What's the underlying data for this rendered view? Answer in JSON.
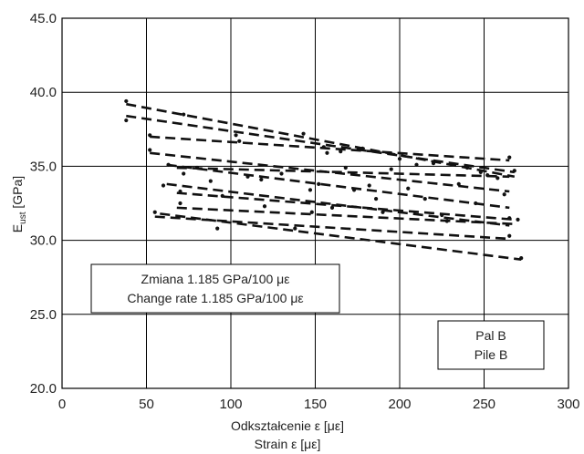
{
  "chart_data": {
    "type": "scatter",
    "xlim": [
      0,
      300
    ],
    "ylim": [
      20,
      45
    ],
    "x_ticks": [
      "0",
      "50",
      "100",
      "150",
      "200",
      "250",
      "300"
    ],
    "y_ticks": [
      "20.0",
      "25.0",
      "30.0",
      "35.0",
      "40.0",
      "45.0"
    ],
    "xlabel": "Odkształcenie ε [με]",
    "xlabel2": "Strain ε [με]",
    "ylabel": "E",
    "ylabel_sub": "ust",
    "ylabel_unit": " [GPa]",
    "grid": true,
    "annotations": {
      "rate_line1": "Zmiana 1.185 GPa/100 με",
      "rate_line2": "Change rate 1.185 GPa/100 με",
      "pile_line1": "Pal B",
      "pile_line2": "Pile B"
    },
    "trend_lines": [
      {
        "x": [
          38,
          268
        ],
        "y": [
          39.2,
          34.3
        ]
      },
      {
        "x": [
          38,
          268
        ],
        "y": [
          38.4,
          34.6
        ]
      },
      {
        "x": [
          52,
          265
        ],
        "y": [
          37.0,
          35.4
        ]
      },
      {
        "x": [
          52,
          265
        ],
        "y": [
          35.9,
          33.3
        ]
      },
      {
        "x": [
          68,
          265
        ],
        "y": [
          34.9,
          34.3
        ]
      },
      {
        "x": [
          62,
          265
        ],
        "y": [
          35.1,
          32.2
        ]
      },
      {
        "x": [
          62,
          265
        ],
        "y": [
          33.8,
          31.0
        ]
      },
      {
        "x": [
          68,
          268
        ],
        "y": [
          33.2,
          31.4
        ]
      },
      {
        "x": [
          68,
          268
        ],
        "y": [
          32.2,
          31.1
        ]
      },
      {
        "x": [
          55,
          265
        ],
        "y": [
          31.6,
          30.1
        ]
      },
      {
        "x": [
          58,
          272
        ],
        "y": [
          31.8,
          28.7
        ]
      }
    ],
    "points": [
      {
        "x": 38,
        "y": 39.4
      },
      {
        "x": 38,
        "y": 38.1
      },
      {
        "x": 52,
        "y": 37.1
      },
      {
        "x": 52,
        "y": 36.1
      },
      {
        "x": 55,
        "y": 31.9
      },
      {
        "x": 60,
        "y": 33.7
      },
      {
        "x": 63,
        "y": 35.1
      },
      {
        "x": 70,
        "y": 33.3
      },
      {
        "x": 70,
        "y": 32.5
      },
      {
        "x": 72,
        "y": 38.5
      },
      {
        "x": 72,
        "y": 34.5
      },
      {
        "x": 80,
        "y": 34.9
      },
      {
        "x": 88,
        "y": 34.0
      },
      {
        "x": 92,
        "y": 30.8
      },
      {
        "x": 95,
        "y": 33.0
      },
      {
        "x": 103,
        "y": 37.1
      },
      {
        "x": 105,
        "y": 36.7
      },
      {
        "x": 110,
        "y": 34.3
      },
      {
        "x": 118,
        "y": 34.1
      },
      {
        "x": 120,
        "y": 32.3
      },
      {
        "x": 130,
        "y": 34.5
      },
      {
        "x": 138,
        "y": 30.8
      },
      {
        "x": 143,
        "y": 37.2
      },
      {
        "x": 147,
        "y": 33.4
      },
      {
        "x": 148,
        "y": 31.9
      },
      {
        "x": 152,
        "y": 33.8
      },
      {
        "x": 155,
        "y": 36.3
      },
      {
        "x": 157,
        "y": 35.9
      },
      {
        "x": 160,
        "y": 32.2
      },
      {
        "x": 165,
        "y": 36.0
      },
      {
        "x": 168,
        "y": 34.9
      },
      {
        "x": 173,
        "y": 33.4
      },
      {
        "x": 178,
        "y": 36.2
      },
      {
        "x": 182,
        "y": 33.7
      },
      {
        "x": 186,
        "y": 32.8
      },
      {
        "x": 190,
        "y": 31.9
      },
      {
        "x": 195,
        "y": 34.8
      },
      {
        "x": 200,
        "y": 35.5
      },
      {
        "x": 205,
        "y": 33.5
      },
      {
        "x": 210,
        "y": 35.1
      },
      {
        "x": 215,
        "y": 32.8
      },
      {
        "x": 220,
        "y": 35.2
      },
      {
        "x": 225,
        "y": 31.7
      },
      {
        "x": 228,
        "y": 31.3
      },
      {
        "x": 235,
        "y": 33.8
      },
      {
        "x": 240,
        "y": 34.9
      },
      {
        "x": 245,
        "y": 32.5
      },
      {
        "x": 248,
        "y": 34.6
      },
      {
        "x": 252,
        "y": 34.4
      },
      {
        "x": 258,
        "y": 34.2
      },
      {
        "x": 262,
        "y": 33.1
      },
      {
        "x": 265,
        "y": 35.6
      },
      {
        "x": 265,
        "y": 31.5
      },
      {
        "x": 265,
        "y": 30.3
      },
      {
        "x": 268,
        "y": 34.7
      },
      {
        "x": 270,
        "y": 31.4
      },
      {
        "x": 272,
        "y": 28.8
      }
    ]
  }
}
